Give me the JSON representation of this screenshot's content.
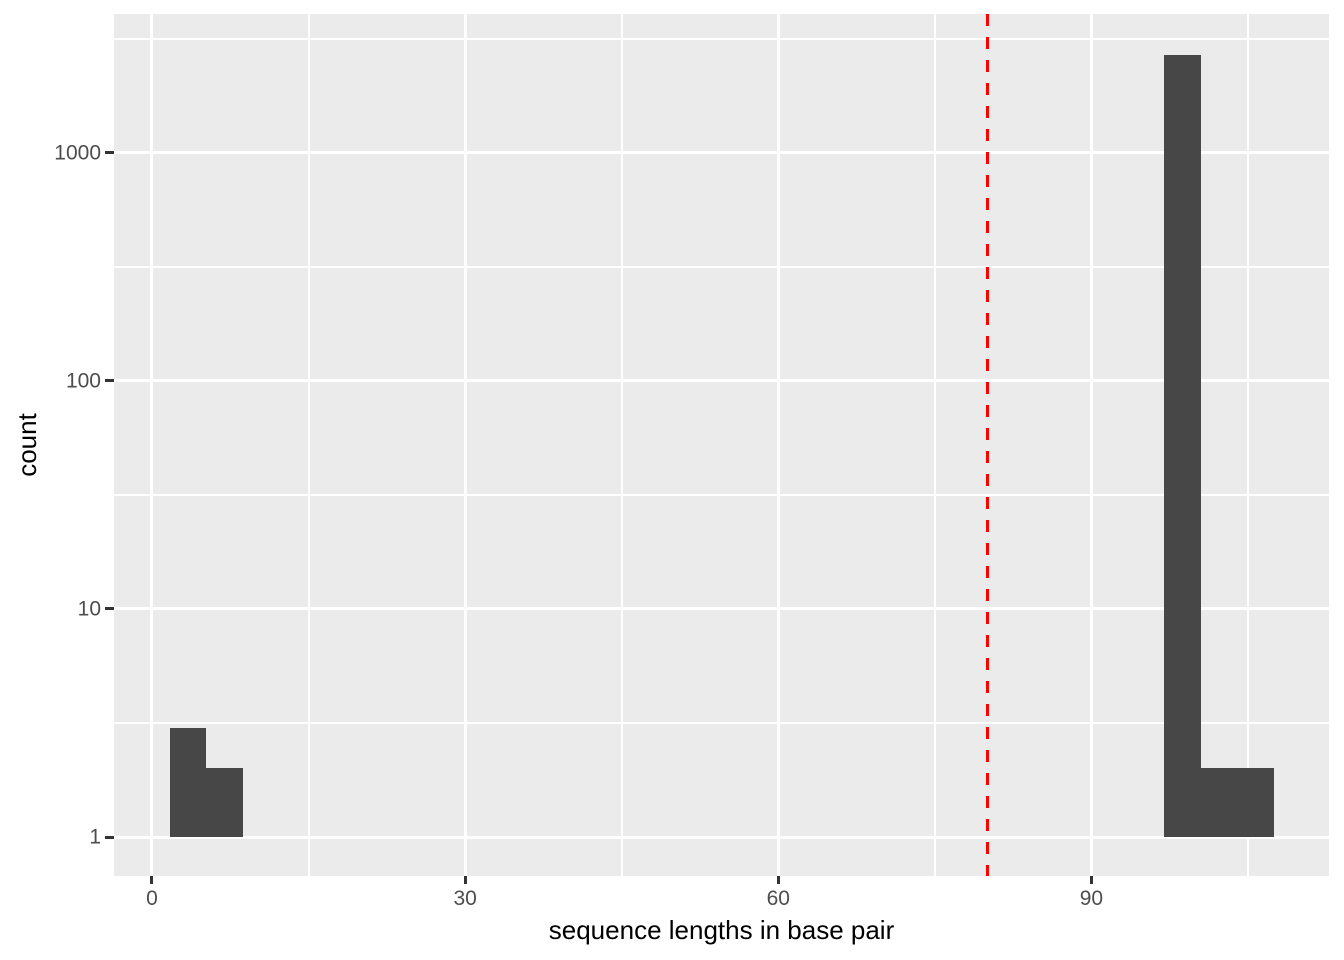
{
  "chart_data": {
    "type": "bar",
    "subtype": "histogram",
    "title": "",
    "xlabel": "sequence lengths in base pair",
    "ylabel": "count",
    "y_scale": "log10",
    "x_ticks": [
      0,
      30,
      60,
      90
    ],
    "x_tick_labels": [
      "0",
      "30",
      "60",
      "90"
    ],
    "x_minor_ticks": [
      15,
      45,
      75,
      105
    ],
    "y_ticks": [
      1,
      10,
      100,
      1000
    ],
    "y_tick_labels": [
      "1",
      "10",
      "100",
      "1000"
    ],
    "y_minor_ticks": [
      3.16,
      31.6,
      316,
      3160
    ],
    "xlim": [
      -3.64,
      112.76
    ],
    "ylim_log10": [
      -0.171,
      3.609
    ],
    "grid": true,
    "legend": "none",
    "bar_baseline_count": 1,
    "bins": [
      {
        "x_start": 1.7,
        "x_end": 5.2,
        "count": 3
      },
      {
        "x_start": 5.2,
        "x_end": 8.7,
        "count": 2
      },
      {
        "x_start": 97.0,
        "x_end": 100.5,
        "count": 2700
      },
      {
        "x_start": 100.5,
        "x_end": 107.5,
        "count": 2
      }
    ],
    "reference_line": {
      "x": 80,
      "orientation": "vertical",
      "color": "#FF0000",
      "style": "dashed"
    },
    "colors": {
      "bar_fill": "#474747",
      "panel_background": "#EBEBEB",
      "grid": "#FFFFFF",
      "tick_label": "#4D4D4D",
      "axis_title": "#000000",
      "tick_mark": "#333333",
      "figure_background": "#FFFFFF"
    }
  }
}
